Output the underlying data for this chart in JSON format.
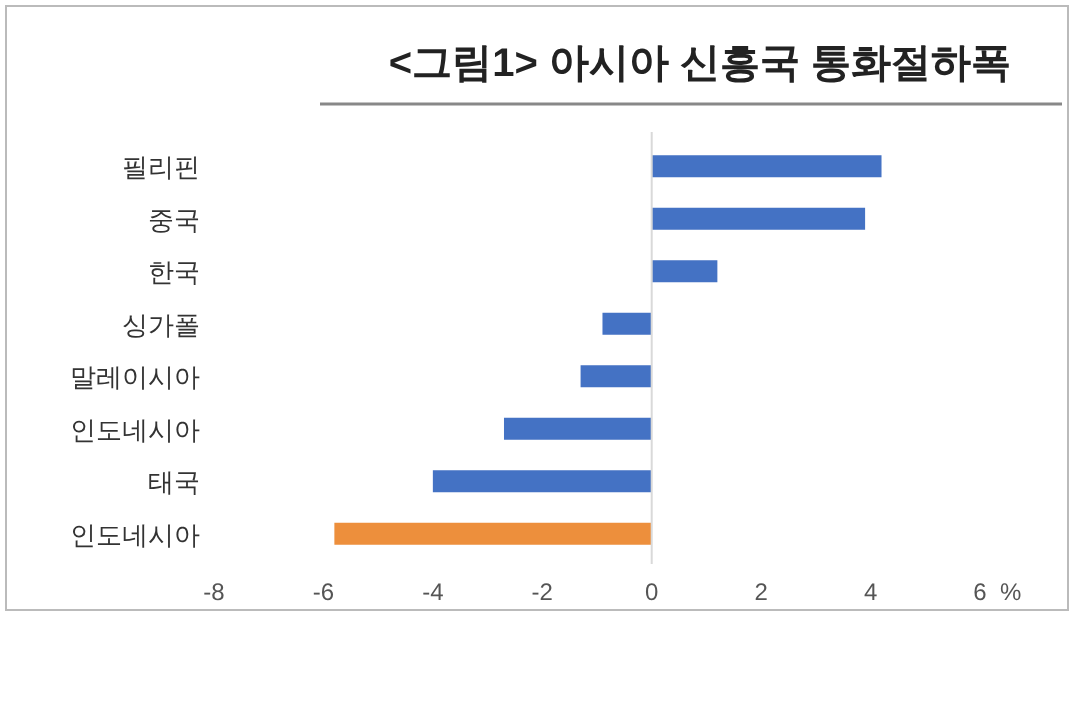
{
  "chart_data": {
    "type": "bar",
    "orientation": "horizontal",
    "title": "<그림1> 아시아 신흥국 통화절하폭",
    "xlabel": "%",
    "categories": [
      "필리핀",
      "중국",
      "한국",
      "싱가폴",
      "말레이시아",
      "인도네시아",
      "태국",
      "인도네시아"
    ],
    "values": [
      4.2,
      3.9,
      1.2,
      -0.9,
      -1.3,
      -2.7,
      -4.0,
      -5.8
    ],
    "colors": [
      "#4472c4",
      "#4472c4",
      "#4472c4",
      "#4472c4",
      "#4472c4",
      "#4472c4",
      "#4472c4",
      "#ed8f3c"
    ],
    "xlim": [
      -8,
      6
    ],
    "xticks": [
      -8,
      -6,
      -4,
      -2,
      0,
      2,
      4,
      6
    ]
  }
}
